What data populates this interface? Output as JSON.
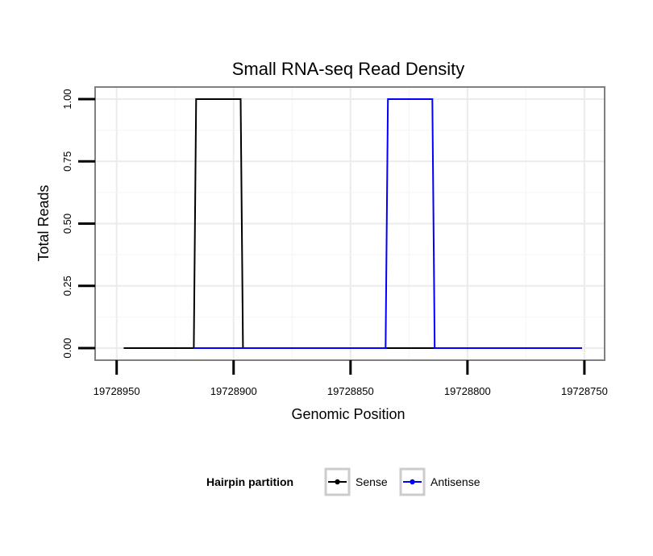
{
  "chart_data": {
    "type": "line",
    "title": "Small RNA-seq Read Density",
    "xlabel": "Genomic Position",
    "ylabel": "Total Reads",
    "x_reversed": true,
    "xlim": [
      19728953,
      19728751
    ],
    "ylim": [
      0,
      1
    ],
    "x_ticks": [
      19728950,
      19728900,
      19728850,
      19728800,
      19728750
    ],
    "x_tick_labels": [
      "19728950",
      "19728900",
      "19728850",
      "19728800",
      "19728750"
    ],
    "y_ticks": [
      0,
      0.25,
      0.5,
      0.75,
      1
    ],
    "y_tick_labels": [
      "0.00",
      "0.25",
      "0.50",
      "0.75",
      "1.00"
    ],
    "grid": true,
    "legend": {
      "title": "Hairpin partition",
      "position": "bottom"
    },
    "series": [
      {
        "name": "Sense",
        "color": "#000000",
        "x": [
          19728947,
          19728917,
          19728916,
          19728897,
          19728896,
          19728751
        ],
        "y": [
          0,
          0,
          1,
          1,
          0,
          0
        ]
      },
      {
        "name": "Antisense",
        "color": "#0000ff",
        "x": [
          19728917,
          19728896,
          19728835,
          19728834,
          19728815,
          19728814,
          19728751
        ],
        "y": [
          0,
          0,
          0,
          1,
          1,
          0,
          0
        ]
      }
    ]
  }
}
